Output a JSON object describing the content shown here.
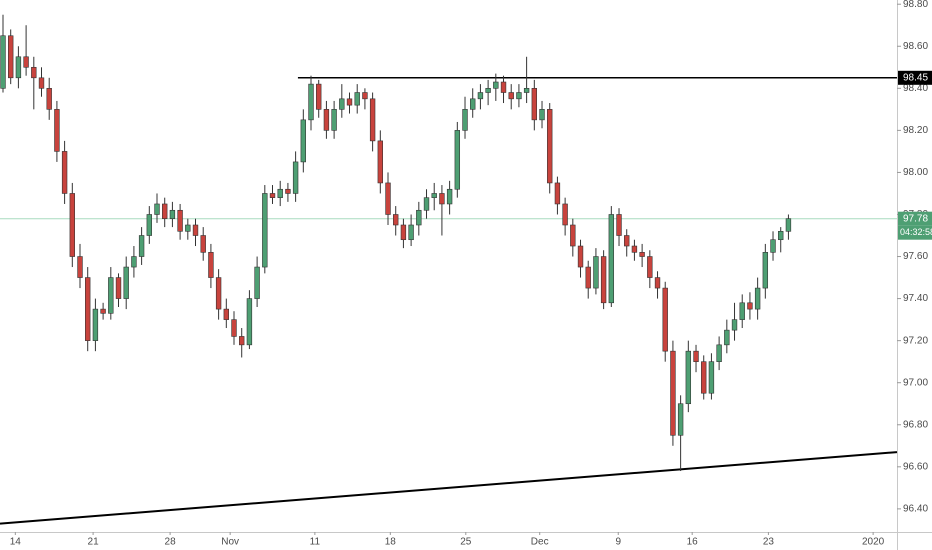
{
  "chart_data": {
    "type": "candlestick",
    "candles": [
      [
        98.4,
        98.75,
        98.38,
        98.65
      ],
      [
        98.65,
        98.68,
        98.42,
        98.45
      ],
      [
        98.45,
        98.6,
        98.4,
        98.55
      ],
      [
        98.55,
        98.7,
        98.46,
        98.5
      ],
      [
        98.5,
        98.55,
        98.3,
        98.45
      ],
      [
        98.45,
        98.5,
        98.36,
        98.4
      ],
      [
        98.4,
        98.45,
        98.25,
        98.3
      ],
      [
        98.3,
        98.34,
        98.05,
        98.1
      ],
      [
        98.1,
        98.15,
        97.85,
        97.9
      ],
      [
        97.9,
        97.95,
        97.55,
        97.6
      ],
      [
        97.6,
        97.66,
        97.45,
        97.5
      ],
      [
        97.5,
        97.55,
        97.15,
        97.2
      ],
      [
        97.2,
        97.4,
        97.15,
        97.35
      ],
      [
        97.35,
        97.38,
        97.3,
        97.33
      ],
      [
        97.33,
        97.55,
        97.3,
        97.5
      ],
      [
        97.5,
        97.52,
        97.36,
        97.4
      ],
      [
        97.4,
        97.6,
        97.35,
        97.55
      ],
      [
        97.55,
        97.65,
        97.5,
        97.6
      ],
      [
        97.6,
        97.74,
        97.56,
        97.7
      ],
      [
        97.7,
        97.84,
        97.66,
        97.8
      ],
      [
        97.8,
        97.9,
        97.76,
        97.85
      ],
      [
        97.85,
        97.88,
        97.74,
        97.78
      ],
      [
        97.78,
        97.86,
        97.74,
        97.82
      ],
      [
        97.82,
        97.85,
        97.68,
        97.72
      ],
      [
        97.72,
        97.78,
        97.68,
        97.75
      ],
      [
        97.75,
        97.78,
        97.65,
        97.7
      ],
      [
        97.7,
        97.74,
        97.58,
        97.62
      ],
      [
        97.62,
        97.66,
        97.45,
        97.5
      ],
      [
        97.5,
        97.54,
        97.3,
        97.35
      ],
      [
        97.35,
        97.4,
        97.26,
        97.3
      ],
      [
        97.3,
        97.34,
        97.18,
        97.22
      ],
      [
        97.22,
        97.26,
        97.12,
        97.18
      ],
      [
        97.18,
        97.44,
        97.16,
        97.4
      ],
      [
        97.4,
        97.6,
        97.36,
        97.55
      ],
      [
        97.55,
        97.94,
        97.52,
        97.9
      ],
      [
        97.9,
        97.94,
        97.85,
        97.88
      ],
      [
        97.88,
        97.96,
        97.84,
        97.92
      ],
      [
        97.92,
        97.95,
        97.86,
        97.9
      ],
      [
        97.9,
        98.1,
        97.86,
        98.05
      ],
      [
        98.05,
        98.3,
        98.0,
        98.25
      ],
      [
        98.25,
        98.46,
        98.2,
        98.42
      ],
      [
        98.42,
        98.44,
        98.26,
        98.3
      ],
      [
        98.3,
        98.34,
        98.16,
        98.2
      ],
      [
        98.2,
        98.34,
        98.16,
        98.3
      ],
      [
        98.3,
        98.42,
        98.26,
        98.35
      ],
      [
        98.35,
        98.38,
        98.28,
        98.32
      ],
      [
        98.32,
        98.42,
        98.28,
        98.38
      ],
      [
        98.38,
        98.4,
        98.3,
        98.35
      ],
      [
        98.35,
        98.38,
        98.1,
        98.15
      ],
      [
        98.15,
        98.2,
        97.9,
        97.95
      ],
      [
        97.95,
        98.0,
        97.75,
        97.8
      ],
      [
        97.8,
        97.84,
        97.7,
        97.75
      ],
      [
        97.75,
        97.78,
        97.64,
        97.68
      ],
      [
        97.68,
        97.8,
        97.65,
        97.75
      ],
      [
        97.75,
        97.86,
        97.7,
        97.82
      ],
      [
        97.82,
        97.92,
        97.78,
        97.88
      ],
      [
        97.88,
        97.95,
        97.82,
        97.9
      ],
      [
        97.9,
        97.94,
        97.7,
        97.85
      ],
      [
        97.85,
        97.96,
        97.8,
        97.92
      ],
      [
        97.92,
        98.24,
        97.88,
        98.2
      ],
      [
        98.2,
        98.36,
        98.16,
        98.3
      ],
      [
        98.3,
        98.4,
        98.26,
        98.35
      ],
      [
        98.35,
        98.42,
        98.3,
        98.38
      ],
      [
        98.38,
        98.44,
        98.32,
        98.4
      ],
      [
        98.4,
        98.47,
        98.34,
        98.43
      ],
      [
        98.43,
        98.46,
        98.33,
        98.38
      ],
      [
        98.38,
        98.42,
        98.3,
        98.35
      ],
      [
        98.35,
        98.42,
        98.31,
        98.38
      ],
      [
        98.38,
        98.55,
        98.33,
        98.4
      ],
      [
        98.4,
        98.44,
        98.2,
        98.25
      ],
      [
        98.25,
        98.34,
        98.21,
        98.3
      ],
      [
        98.3,
        98.33,
        97.9,
        97.95
      ],
      [
        97.95,
        97.98,
        97.8,
        97.85
      ],
      [
        97.85,
        97.88,
        97.7,
        97.75
      ],
      [
        97.75,
        97.78,
        97.6,
        97.65
      ],
      [
        97.65,
        97.68,
        97.5,
        97.55
      ],
      [
        97.55,
        97.58,
        97.4,
        97.45
      ],
      [
        97.45,
        97.64,
        97.42,
        97.6
      ],
      [
        97.6,
        97.63,
        97.35,
        97.38
      ],
      [
        97.38,
        97.84,
        97.36,
        97.8
      ],
      [
        97.8,
        97.83,
        97.65,
        97.7
      ],
      [
        97.7,
        97.73,
        97.6,
        97.65
      ],
      [
        97.65,
        97.68,
        97.58,
        97.62
      ],
      [
        97.62,
        97.66,
        97.55,
        97.6
      ],
      [
        97.6,
        97.63,
        97.45,
        97.5
      ],
      [
        97.5,
        97.53,
        97.4,
        97.45
      ],
      [
        97.45,
        97.48,
        97.1,
        97.15
      ],
      [
        97.15,
        97.2,
        96.7,
        96.75
      ],
      [
        96.75,
        96.94,
        96.58,
        96.9
      ],
      [
        96.9,
        97.2,
        96.86,
        97.15
      ],
      [
        97.15,
        97.18,
        97.05,
        97.1
      ],
      [
        97.1,
        97.13,
        96.92,
        96.95
      ],
      [
        96.95,
        97.14,
        96.92,
        97.1
      ],
      [
        97.1,
        97.22,
        97.06,
        97.18
      ],
      [
        97.18,
        97.3,
        97.14,
        97.25
      ],
      [
        97.25,
        97.38,
        97.2,
        97.3
      ],
      [
        97.3,
        97.42,
        97.26,
        97.38
      ],
      [
        97.38,
        97.43,
        97.3,
        97.35
      ],
      [
        97.35,
        97.5,
        97.3,
        97.45
      ],
      [
        97.45,
        97.66,
        97.4,
        97.62
      ],
      [
        97.62,
        97.72,
        97.58,
        97.68
      ],
      [
        97.68,
        97.74,
        97.62,
        97.72
      ],
      [
        97.72,
        97.8,
        97.68,
        97.78
      ]
    ],
    "up_color": "#4e9f73",
    "down_color": "#c8433d",
    "xlim": [
      -0.39,
      116.1
    ],
    "xticks": [
      {
        "value": 1.6,
        "label": "14"
      },
      {
        "value": 11.7,
        "label": "21"
      },
      {
        "value": 21.7,
        "label": "28"
      },
      {
        "value": 29.5,
        "label": "Nov"
      },
      {
        "value": 40.5,
        "label": "11"
      },
      {
        "value": 50.3,
        "label": "18"
      },
      {
        "value": 60.1,
        "label": "25"
      },
      {
        "value": 69.7,
        "label": "Dec"
      },
      {
        "value": 79.9,
        "label": "9"
      },
      {
        "value": 89.5,
        "label": "16"
      },
      {
        "value": 99.4,
        "label": "23"
      },
      {
        "value": 113,
        "label": "2020"
      }
    ],
    "ylim": [
      96.29,
      98.82
    ],
    "yticks": [
      {
        "value": 96.4,
        "label": "96.40"
      },
      {
        "value": 96.6,
        "label": "96.60"
      },
      {
        "value": 96.8,
        "label": "96.80"
      },
      {
        "value": 97,
        "label": "97.00"
      },
      {
        "value": 97.2,
        "label": "97.20"
      },
      {
        "value": 97.4,
        "label": "97.40"
      },
      {
        "value": 97.6,
        "label": "97.60"
      },
      {
        "value": 97.8,
        "label": "97.80"
      },
      {
        "value": 98,
        "label": "98.00"
      },
      {
        "value": 98.2,
        "label": "98.20"
      },
      {
        "value": 98.4,
        "label": "98.40"
      },
      {
        "value": 98.6,
        "label": "98.60"
      },
      {
        "value": 98.8,
        "label": "98.80"
      }
    ],
    "grid": false,
    "resistance": {
      "x_start": 38.3,
      "value": 98.45
    },
    "trendline": {
      "x": [
        -0.39,
        116.1
      ],
      "values": [
        96.33,
        96.67
      ]
    },
    "last_price": 97.78,
    "countdown": "04:32:58"
  }
}
